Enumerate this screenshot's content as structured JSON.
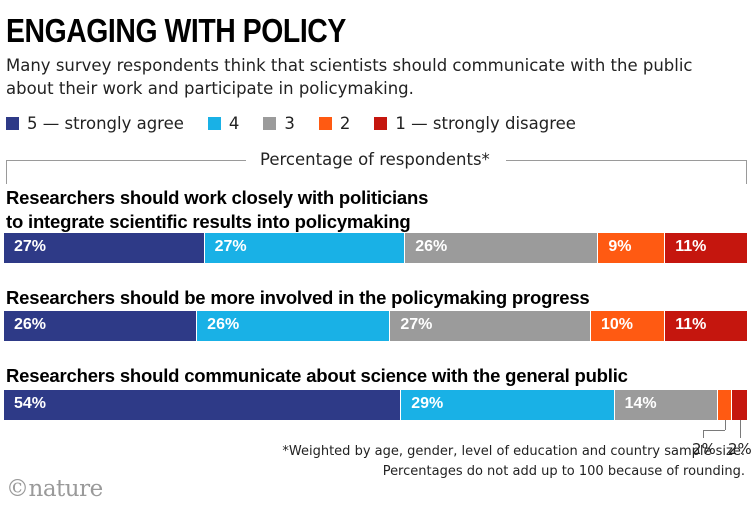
{
  "title": "ENGAGING WITH POLICY",
  "subtitle": "Many survey respondents think that scientists should communicate with the public about their work and participate in policymaking.",
  "legend": [
    {
      "label": "5 — strongly agree",
      "color": "#2e3a87"
    },
    {
      "label": "4",
      "color": "#19b1e6"
    },
    {
      "label": "3",
      "color": "#9b9b9b"
    },
    {
      "label": "2",
      "color": "#ff5a12"
    },
    {
      "label": "1 — strongly disagree",
      "color": "#c5160e"
    }
  ],
  "axis_label": "Percentage of respondents*",
  "footnote": {
    "line1": "*Weighted by age, gender, level of education and country sample size.",
    "line2": "Percentages do not add up to 100 because of rounding."
  },
  "logo": "©nature",
  "chart_data": {
    "type": "bar",
    "orientation": "horizontal",
    "stacked": true,
    "categories": [
      "Researchers should work closely with politicians\nto integrate scientific results into policymaking",
      "Researchers should be more involved in the policymaking progress",
      "Researchers should communicate about science with the general public"
    ],
    "series": [
      {
        "name": "5 — strongly agree",
        "color": "#2e3a87",
        "values": [
          27,
          26,
          54
        ]
      },
      {
        "name": "4",
        "color": "#19b1e6",
        "values": [
          27,
          26,
          29
        ]
      },
      {
        "name": "3",
        "color": "#9b9b9b",
        "values": [
          26,
          27,
          14
        ]
      },
      {
        "name": "2",
        "color": "#ff5a12",
        "values": [
          9,
          10,
          2
        ]
      },
      {
        "name": "1 — strongly disagree",
        "color": "#c5160e",
        "values": [
          11,
          11,
          2
        ]
      }
    ],
    "data_labels": [
      [
        "27%",
        "27%",
        "26%",
        "9%",
        "11%"
      ],
      [
        "26%",
        "26%",
        "27%",
        "10%",
        "11%"
      ],
      [
        "54%",
        "29%",
        "14%",
        "2%",
        "2%"
      ]
    ],
    "xlabel": "Percentage of respondents*"
  }
}
